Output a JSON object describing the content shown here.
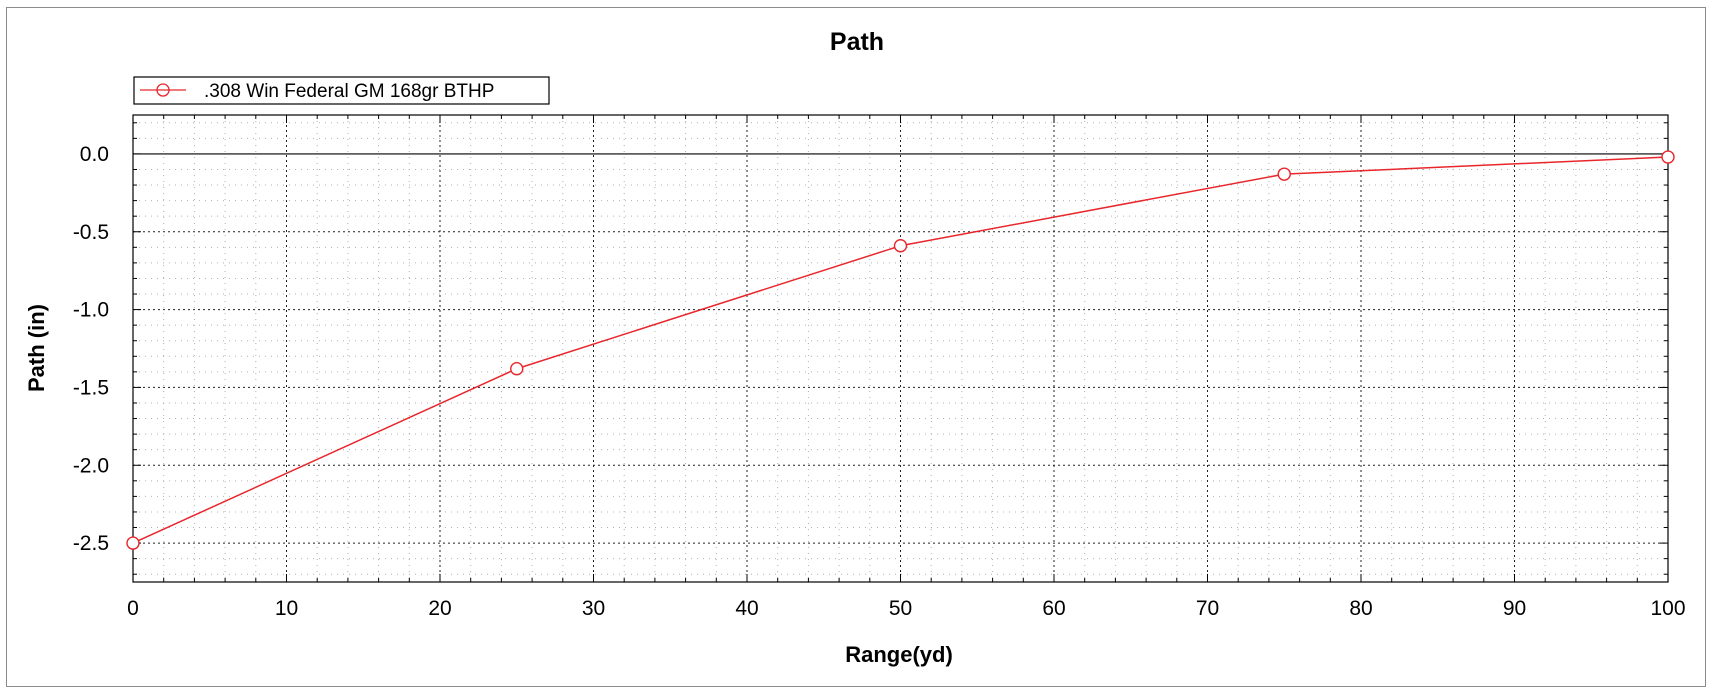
{
  "chart_data": {
    "type": "line",
    "title": "Path",
    "xlabel": "Range(yd)",
    "ylabel": "Path (in)",
    "xlim": [
      0,
      100
    ],
    "ylim": [
      -2.75,
      0.25
    ],
    "x_ticks": [
      0,
      10,
      20,
      30,
      40,
      50,
      60,
      70,
      80,
      90,
      100
    ],
    "y_ticks": [
      0.0,
      -0.5,
      -1.0,
      -1.5,
      -2.0,
      -2.5
    ],
    "y_tick_labels": [
      "0.0",
      "-0.5",
      "-1.0",
      "-1.5",
      "-2.0",
      "-2.5"
    ],
    "grid": true,
    "legend_position": "top-left",
    "series": [
      {
        "name": ".308 Win Federal GM 168gr BTHP",
        "color": "#e8262b",
        "marker": "circle",
        "x": [
          0,
          25,
          50,
          75,
          100
        ],
        "y": [
          -2.5,
          -1.38,
          -0.59,
          -0.13,
          -0.02
        ]
      }
    ]
  }
}
